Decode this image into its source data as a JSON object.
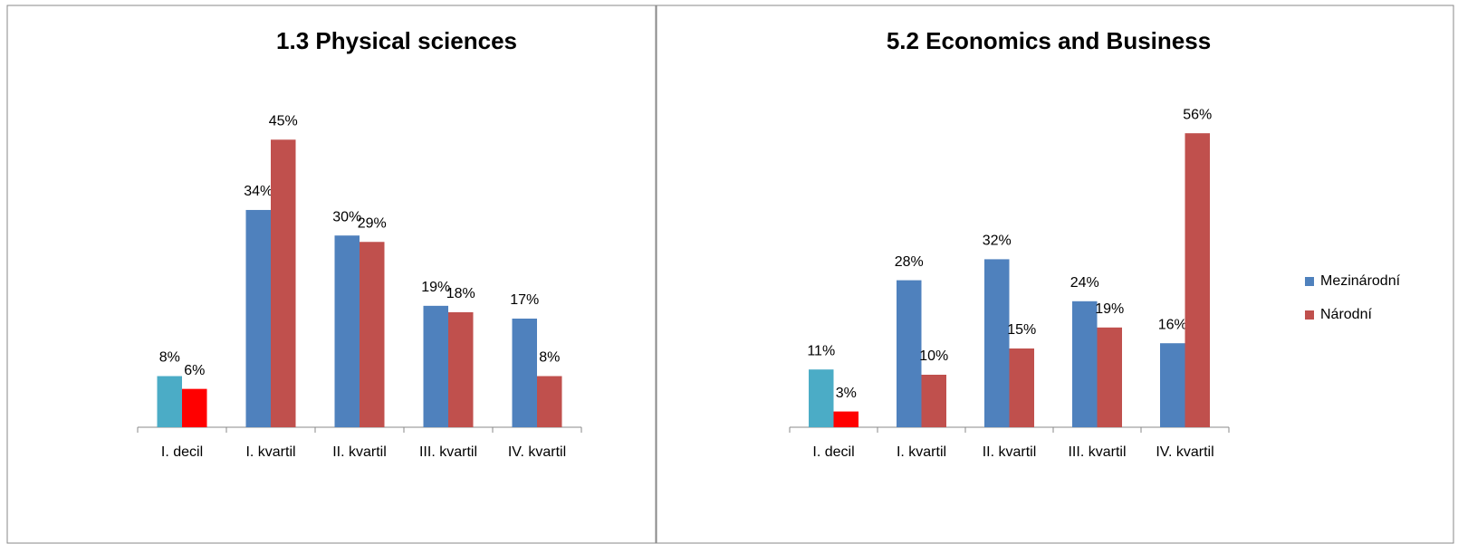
{
  "chart_data": [
    {
      "type": "bar",
      "title": "1.3 Physical sciences",
      "categories": [
        "I. decil",
        "I. kvartil",
        "II. kvartil",
        "III. kvartil",
        "IV. kvartil"
      ],
      "series": [
        {
          "name": "Mezinárodní",
          "color": "#4f81bd",
          "point_colors": [
            "#4bacc6",
            "#4f81bd",
            "#4f81bd",
            "#4f81bd",
            "#4f81bd"
          ],
          "values": [
            8,
            34,
            30,
            19,
            17
          ],
          "value_labels": [
            "8%",
            "34%",
            "30%",
            "19%",
            "17%"
          ]
        },
        {
          "name": "Národní",
          "color": "#c0504d",
          "point_colors": [
            "#ff0000",
            "#c0504d",
            "#c0504d",
            "#c0504d",
            "#c0504d"
          ],
          "values": [
            6,
            45,
            29,
            18,
            8
          ],
          "value_labels": [
            "6%",
            "45%",
            "29%",
            "18%",
            "8%"
          ]
        }
      ],
      "ylim": [
        0,
        50
      ]
    },
    {
      "type": "bar",
      "title": "5.2 Economics and Business",
      "categories": [
        "I. decil",
        "I. kvartil",
        "II. kvartil",
        "III. kvartil",
        "IV. kvartil"
      ],
      "series": [
        {
          "name": "Mezinárodní",
          "color": "#4f81bd",
          "point_colors": [
            "#4bacc6",
            "#4f81bd",
            "#4f81bd",
            "#4f81bd",
            "#4f81bd"
          ],
          "values": [
            11,
            28,
            32,
            24,
            16
          ],
          "value_labels": [
            "11%",
            "28%",
            "32%",
            "24%",
            "16%"
          ]
        },
        {
          "name": "Národní",
          "color": "#c0504d",
          "point_colors": [
            "#ff0000",
            "#c0504d",
            "#c0504d",
            "#c0504d",
            "#c0504d"
          ],
          "values": [
            3,
            10,
            15,
            19,
            56
          ],
          "value_labels": [
            "3%",
            "10%",
            "15%",
            "19%",
            "56%"
          ]
        }
      ],
      "ylim": [
        0,
        60
      ],
      "legend": "right"
    }
  ]
}
